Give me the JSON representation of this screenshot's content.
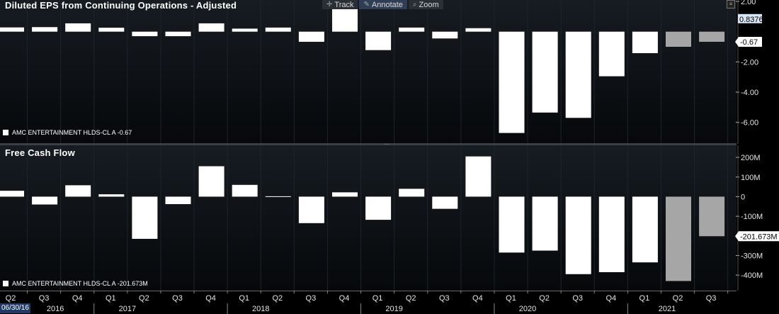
{
  "toolbar": {
    "track_label": "Track",
    "annotate_label": "Annotate",
    "zoom_label": "Zoom"
  },
  "date_tag": "06/30/16",
  "chart_data": [
    {
      "type": "bar",
      "title": "Diluted EPS from Continuing Operations - Adjusted",
      "categories": [
        "Q2 2016",
        "Q3 2016",
        "Q4 2016",
        "Q1 2017",
        "Q2 2017",
        "Q3 2017",
        "Q4 2017",
        "Q1 2018",
        "Q2 2018",
        "Q3 2018",
        "Q4 2018",
        "Q1 2019",
        "Q2 2019",
        "Q3 2019",
        "Q4 2019",
        "Q1 2020",
        "Q2 2020",
        "Q3 2020",
        "Q4 2020",
        "Q1 2021",
        "Q2 2021",
        "Q3 2021"
      ],
      "series": [
        {
          "name": "AMC ENTERTAINMENT HLDS-CL A",
          "values": [
            0.28,
            0.3,
            0.55,
            0.26,
            -0.3,
            -0.3,
            0.55,
            0.2,
            0.27,
            -0.67,
            2.0,
            -1.22,
            0.27,
            -0.45,
            0.23,
            -6.7,
            -5.35,
            -5.7,
            -2.95,
            -1.42,
            -1.0,
            -0.67
          ],
          "estimate_flags": [
            false,
            false,
            false,
            false,
            false,
            false,
            false,
            false,
            false,
            false,
            false,
            false,
            false,
            false,
            false,
            false,
            false,
            false,
            false,
            false,
            true,
            true
          ]
        }
      ],
      "legend_label": "AMC ENTERTAINMENT HLDS-CL A  -0.67",
      "yticks": [
        "2.00",
        "-2.00",
        "-4.00",
        "-6.00"
      ],
      "ytick_values": [
        2,
        -2,
        -4,
        -6
      ],
      "ylim": [
        -7.0,
        2.0
      ],
      "last_value_badge": "0.8376",
      "last_value_badge_value": 0.8376,
      "current_value_badge": "-0.67",
      "current_value": -0.67,
      "colors": {
        "actual": "#ffffff",
        "estimate": "#a6a6a6",
        "badge_blue": "#d7e6f5"
      }
    },
    {
      "type": "bar",
      "title": "Free Cash Flow",
      "categories": [
        "Q2 2016",
        "Q3 2016",
        "Q4 2016",
        "Q1 2017",
        "Q2 2017",
        "Q3 2017",
        "Q4 2017",
        "Q1 2018",
        "Q2 2018",
        "Q3 2018",
        "Q4 2018",
        "Q1 2019",
        "Q2 2019",
        "Q3 2019",
        "Q4 2019",
        "Q1 2020",
        "Q2 2020",
        "Q3 2020",
        "Q4 2020",
        "Q1 2021",
        "Q2 2021",
        "Q3 2021"
      ],
      "series": [
        {
          "name": "AMC ENTERTAINMENT HLDS-CL A",
          "values": [
            30,
            -40,
            58,
            12,
            -215,
            -38,
            155,
            60,
            2,
            -135,
            22,
            -118,
            40,
            -62,
            205,
            -285,
            -275,
            -395,
            -385,
            -335,
            -430,
            -201.673
          ],
          "estimate_flags": [
            false,
            false,
            false,
            false,
            false,
            false,
            false,
            false,
            false,
            false,
            false,
            false,
            false,
            false,
            false,
            false,
            false,
            false,
            false,
            false,
            true,
            true
          ]
        }
      ],
      "legend_label": "AMC ENTERTAINMENT HLDS-CL A  -201.673M",
      "yticks": [
        "200M",
        "100M",
        "0",
        "-100M",
        "-300M",
        "-400M"
      ],
      "ytick_values": [
        200,
        100,
        0,
        -100,
        -300,
        -400
      ],
      "ylim": [
        -450,
        240
      ],
      "unit": "M",
      "current_value_badge": "-201.673M",
      "current_value": -201.673,
      "colors": {
        "actual": "#ffffff",
        "estimate": "#a6a6a6"
      }
    }
  ],
  "x_axis": {
    "quarter_labels": [
      "Q2",
      "Q3",
      "Q4",
      "Q1",
      "Q2",
      "Q3",
      "Q4",
      "Q1",
      "Q2",
      "Q3",
      "Q4",
      "Q1",
      "Q2",
      "Q3",
      "Q4",
      "Q1",
      "Q2",
      "Q3",
      "Q4",
      "Q1",
      "Q2",
      "Q3"
    ],
    "year_labels": [
      {
        "label": "2016",
        "at_index": 1
      },
      {
        "label": "2017",
        "at_index": 4
      },
      {
        "label": "2018",
        "at_index": 8
      },
      {
        "label": "2019",
        "at_index": 12
      },
      {
        "label": "2020",
        "at_index": 16
      },
      {
        "label": "2021",
        "at_index": 20
      }
    ]
  }
}
